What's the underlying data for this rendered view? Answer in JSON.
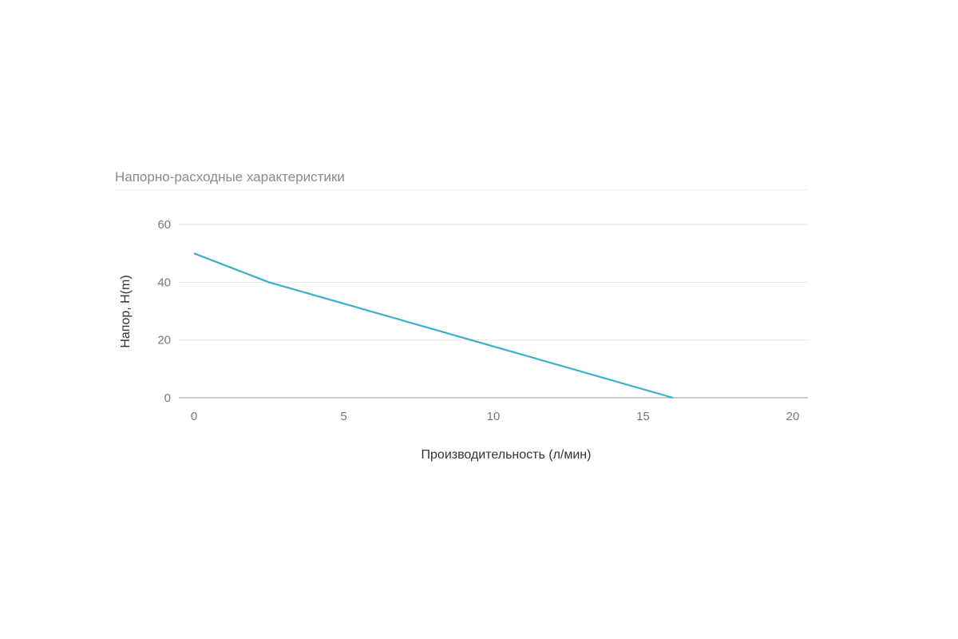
{
  "chart_data": {
    "type": "line",
    "title": "Напорно-расходные характеристики",
    "xlabel": "Производительность (л/мин)",
    "ylabel": "Напор, H(m)",
    "xlim": [
      0,
      20
    ],
    "ylim": [
      0,
      60
    ],
    "xticks": [
      "0",
      "5",
      "10",
      "15",
      "20"
    ],
    "yticks": [
      "0",
      "20",
      "40",
      "60"
    ],
    "grid": true,
    "series": [
      {
        "color": "#3ab0c8",
        "points": [
          {
            "x": 0,
            "y": 50
          },
          {
            "x": 2.5,
            "y": 40
          },
          {
            "x": 16,
            "y": 0
          }
        ]
      }
    ]
  }
}
